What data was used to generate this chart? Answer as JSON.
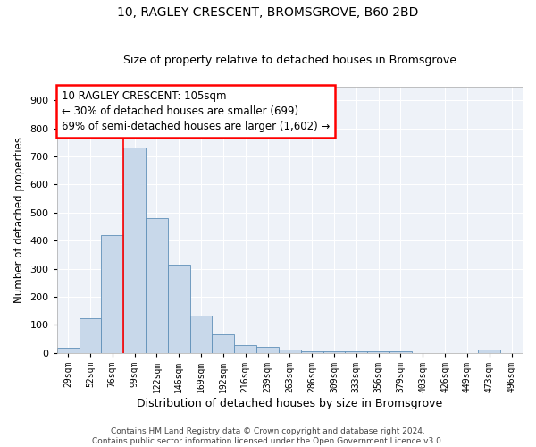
{
  "title_line1": "10, RAGLEY CRESCENT, BROMSGROVE, B60 2BD",
  "title_line2": "Size of property relative to detached houses in Bromsgrove",
  "xlabel": "Distribution of detached houses by size in Bromsgrove",
  "ylabel": "Number of detached properties",
  "bar_color": "#c8d8ea",
  "bar_edge_color": "#6090b8",
  "vline_color": "red",
  "vline_x": 99,
  "categories": [
    "29sqm",
    "52sqm",
    "76sqm",
    "99sqm",
    "122sqm",
    "146sqm",
    "169sqm",
    "192sqm",
    "216sqm",
    "239sqm",
    "263sqm",
    "286sqm",
    "309sqm",
    "333sqm",
    "356sqm",
    "379sqm",
    "403sqm",
    "426sqm",
    "449sqm",
    "473sqm",
    "496sqm"
  ],
  "bin_width": 23,
  "bin_starts": [
    17.5,
    40.5,
    63.5,
    86.5,
    109.5,
    132.5,
    155.5,
    178.5,
    201.5,
    224.5,
    247.5,
    270.5,
    293.5,
    316.5,
    339.5,
    362.5,
    385.5,
    408.5,
    431.5,
    454.5,
    477.5
  ],
  "values": [
    18,
    122,
    418,
    733,
    481,
    315,
    133,
    65,
    28,
    22,
    13,
    5,
    5,
    5,
    5,
    5,
    0,
    0,
    0,
    13,
    0
  ],
  "annotation_text": "10 RAGLEY CRESCENT: 105sqm\n← 30% of detached houses are smaller (699)\n69% of semi-detached houses are larger (1,602) →",
  "annotation_box_color": "white",
  "annotation_box_edge": "red",
  "ylim": [
    0,
    950
  ],
  "yticks": [
    0,
    100,
    200,
    300,
    400,
    500,
    600,
    700,
    800,
    900
  ],
  "background_color": "#eef2f8",
  "grid_color": "white",
  "footer_line1": "Contains HM Land Registry data © Crown copyright and database right 2024.",
  "footer_line2": "Contains public sector information licensed under the Open Government Licence v3.0."
}
